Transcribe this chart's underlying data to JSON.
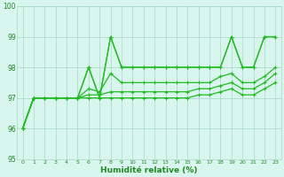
{
  "xlabel": "Humidité relative (%)",
  "xlim": [
    -0.5,
    23.5
  ],
  "ylim": [
    95,
    100
  ],
  "yticks": [
    95,
    96,
    97,
    98,
    99,
    100
  ],
  "xticks": [
    0,
    1,
    2,
    3,
    4,
    5,
    6,
    7,
    8,
    9,
    10,
    11,
    12,
    13,
    14,
    15,
    16,
    17,
    18,
    19,
    20,
    21,
    22,
    23
  ],
  "bg_color": "#d8f5ee",
  "grid_color": "#a8d8c8",
  "line_color": "#22bb22",
  "lines": [
    [
      96,
      97,
      97,
      97,
      97,
      97,
      98,
      97,
      99,
      98,
      98,
      98,
      98,
      98,
      98,
      98,
      98,
      98,
      98,
      99,
      98,
      98,
      99,
      99
    ],
    [
      96,
      97,
      97,
      97,
      97,
      97,
      98,
      97,
      99,
      98,
      98,
      98,
      98,
      98,
      98,
      98,
      98,
      98,
      98,
      99,
      98,
      98,
      99,
      99
    ],
    [
      96,
      97,
      97,
      97,
      97,
      97,
      97.3,
      97.2,
      97.8,
      97.5,
      97.5,
      97.5,
      97.5,
      97.5,
      97.5,
      97.5,
      97.5,
      97.5,
      97.7,
      97.8,
      97.5,
      97.5,
      97.7,
      98
    ],
    [
      96,
      97,
      97,
      97,
      97,
      97,
      97.1,
      97.1,
      97.2,
      97.2,
      97.2,
      97.2,
      97.2,
      97.2,
      97.2,
      97.2,
      97.3,
      97.3,
      97.4,
      97.5,
      97.3,
      97.3,
      97.5,
      97.8
    ],
    [
      96,
      97,
      97,
      97,
      97,
      97,
      97,
      97,
      97,
      97,
      97,
      97,
      97,
      97,
      97,
      97,
      97.1,
      97.1,
      97.2,
      97.3,
      97.1,
      97.1,
      97.3,
      97.5
    ]
  ]
}
